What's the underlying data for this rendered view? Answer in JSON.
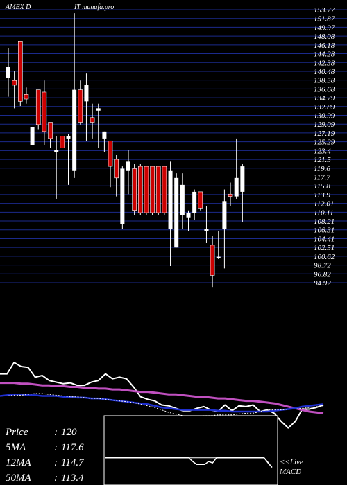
{
  "header": {
    "symbol": "AMEX  D",
    "site": "IT munafa.pro"
  },
  "colors": {
    "background": "#000000",
    "grid": "#1b2a8c",
    "up": "#ffffff",
    "down": "#cc0000",
    "rsi": "#ffffff",
    "ma_magenta": "#c050c0",
    "ma_blue": "#1f2fd0",
    "macd": "#ffffff"
  },
  "chart_data": [
    {
      "type": "candlestick",
      "y_ticks": [
        "153.77",
        "151.87",
        "149.97",
        "148.08",
        "146.18",
        "144.28",
        "142.38",
        "140.48",
        "138.58",
        "136.68",
        "134.79",
        "132.89",
        "130.99",
        "129.09",
        "127.19",
        "125.29",
        "123.4",
        "121.5",
        "119.6",
        "117.7",
        "115.8",
        "113.9",
        "112.01",
        "110.11",
        "108.21",
        "106.31",
        "104.41",
        "102.51",
        "100.62",
        "98.72",
        "96.82",
        "94.92"
      ],
      "ylim": [
        94.92,
        153.77
      ],
      "candles": [
        {
          "o": 139.0,
          "h": 145.5,
          "l": 135.0,
          "c": 141.5
        },
        {
          "o": 138.5,
          "h": 140.5,
          "l": 132.5,
          "c": 137.5
        },
        {
          "o": 147.0,
          "h": 147.0,
          "l": 133.0,
          "c": 134.0
        },
        {
          "o": 135.5,
          "h": 137.0,
          "l": 133.5,
          "c": 134.5
        },
        {
          "o": 124.5,
          "h": 128.5,
          "l": 124.5,
          "c": 128.5
        },
        {
          "o": 136.5,
          "h": 136.5,
          "l": 128.0,
          "c": 129.0
        },
        {
          "o": 136.0,
          "h": 138.5,
          "l": 124.5,
          "c": 127.5
        },
        {
          "o": 129.5,
          "h": 129.5,
          "l": 124.0,
          "c": 126.0
        },
        {
          "o": 123.0,
          "h": 126.5,
          "l": 113.0,
          "c": 123.5
        },
        {
          "o": 126.5,
          "h": 126.5,
          "l": 124.0,
          "c": 124.0
        },
        {
          "o": 126.0,
          "h": 127.0,
          "l": 116.0,
          "c": 126.5
        },
        {
          "o": 119.0,
          "h": 153.0,
          "l": 117.5,
          "c": 136.5
        },
        {
          "o": 136.5,
          "h": 138.5,
          "l": 129.0,
          "c": 129.5
        },
        {
          "o": 134.0,
          "h": 140.0,
          "l": 125.5,
          "c": 137.5
        },
        {
          "o": 130.5,
          "h": 133.5,
          "l": 126.0,
          "c": 129.5
        },
        {
          "o": 132.0,
          "h": 133.5,
          "l": 124.0,
          "c": 132.5
        },
        {
          "o": 126.0,
          "h": 127.5,
          "l": 123.0,
          "c": 127.5
        },
        {
          "o": 125.5,
          "h": 125.5,
          "l": 115.5,
          "c": 120.0
        },
        {
          "o": 121.5,
          "h": 122.5,
          "l": 113.5,
          "c": 117.5
        },
        {
          "o": 107.5,
          "h": 120.0,
          "l": 106.5,
          "c": 119.5
        },
        {
          "o": 119.0,
          "h": 123.5,
          "l": 114.0,
          "c": 121.0
        },
        {
          "o": 119.5,
          "h": 120.5,
          "l": 109.5,
          "c": 110.5
        },
        {
          "o": 120.0,
          "h": 120.5,
          "l": 109.5,
          "c": 110.0
        },
        {
          "o": 120.0,
          "h": 120.0,
          "l": 109.5,
          "c": 110.0
        },
        {
          "o": 120.0,
          "h": 120.0,
          "l": 109.5,
          "c": 110.0
        },
        {
          "o": 120.0,
          "h": 120.0,
          "l": 109.5,
          "c": 110.0
        },
        {
          "o": 120.0,
          "h": 120.0,
          "l": 109.5,
          "c": 110.0
        },
        {
          "o": 106.5,
          "h": 121.0,
          "l": 98.5,
          "c": 119.0
        },
        {
          "o": 102.5,
          "h": 118.5,
          "l": 102.5,
          "c": 117.5
        },
        {
          "o": 109.5,
          "h": 118.5,
          "l": 106.5,
          "c": 116.0
        },
        {
          "o": 109.0,
          "h": 110.5,
          "l": 106.0,
          "c": 110.0
        },
        {
          "o": 110.0,
          "h": 115.0,
          "l": 108.5,
          "c": 114.5
        },
        {
          "o": 114.5,
          "h": 114.5,
          "l": 110.5,
          "c": 111.0
        },
        {
          "o": 106.0,
          "h": 111.5,
          "l": 103.5,
          "c": 106.5
        },
        {
          "o": 103.0,
          "h": 105.0,
          "l": 94.0,
          "c": 96.5
        },
        {
          "o": 100.5,
          "h": 106.0,
          "l": 100.0,
          "c": 100.5
        },
        {
          "o": 106.5,
          "h": 115.0,
          "l": 98.0,
          "c": 112.5
        },
        {
          "o": 114.0,
          "h": 116.5,
          "l": 111.5,
          "c": 113.5
        },
        {
          "o": 113.5,
          "h": 126.0,
          "l": 113.0,
          "c": 117.5
        },
        {
          "o": 114.5,
          "h": 120.5,
          "l": 108.0,
          "c": 120.0
        }
      ]
    },
    {
      "type": "line",
      "series": [
        {
          "values": [
            58,
            58,
            72,
            67,
            66,
            54,
            56,
            50,
            48,
            46,
            47,
            44,
            44,
            48,
            50,
            58,
            52,
            54,
            52,
            42,
            30,
            27,
            25,
            20,
            19,
            16,
            13,
            13,
            16,
            18,
            14,
            12,
            20,
            13,
            19,
            18,
            20,
            12,
            14,
            10,
            0,
            -8,
            0,
            15,
            15,
            17,
            20
          ]
        },
        {
          "values": [
            47,
            47,
            47,
            46,
            46,
            45,
            44,
            44,
            43,
            43,
            42,
            42,
            41,
            41,
            40,
            40,
            39,
            39,
            38,
            37,
            36,
            36,
            35,
            34,
            33,
            33,
            32,
            31,
            30,
            30,
            29,
            28,
            28,
            27,
            26,
            25,
            25,
            24,
            23,
            22,
            20,
            18,
            16,
            14,
            12,
            11,
            10
          ]
        },
        {
          "values": [
            31,
            32,
            33,
            33,
            32,
            32,
            31,
            31,
            31,
            30,
            30,
            29,
            29,
            28,
            28,
            27,
            26,
            25,
            24,
            23,
            22,
            21,
            19,
            17,
            16,
            15,
            14,
            14,
            14,
            14,
            14,
            13,
            13,
            12,
            12,
            12,
            12,
            12,
            12,
            13,
            14,
            15,
            16,
            18,
            19,
            20,
            21
          ]
        },
        {
          "values": [
            31,
            31,
            32,
            32,
            33,
            34,
            34,
            33,
            32,
            31,
            30,
            30,
            29,
            28,
            28,
            27,
            26,
            25,
            24,
            23,
            21,
            19,
            17,
            14,
            11,
            9,
            7,
            6,
            6,
            7,
            7,
            8,
            8,
            8,
            9,
            10,
            10,
            12,
            14,
            14,
            14,
            15,
            15,
            16,
            17,
            18,
            19
          ]
        }
      ],
      "ylim": [
        -10,
        100
      ]
    },
    {
      "type": "line",
      "series": [
        {
          "values": [
            5,
            5,
            5,
            5,
            5,
            5,
            5,
            5,
            5,
            5,
            5,
            5,
            5,
            5,
            5,
            5,
            5,
            5,
            5,
            5,
            5,
            5,
            5,
            5,
            5,
            5,
            5,
            5,
            5,
            5,
            5,
            5,
            5,
            5,
            5,
            5,
            5,
            5,
            5,
            5,
            5,
            -1,
            -8
          ]
        },
        {
          "values": [
            5,
            5,
            5,
            5,
            5,
            5,
            5,
            5,
            5,
            5,
            5,
            5,
            5,
            5,
            5,
            5,
            5,
            5,
            5,
            5,
            5,
            5,
            0,
            -4,
            -4,
            -4,
            0,
            -2,
            5,
            5,
            5,
            5,
            5,
            5,
            5,
            5,
            5,
            5,
            5,
            5,
            5,
            -2,
            -8
          ]
        }
      ],
      "ylim": [
        -30,
        60
      ]
    }
  ],
  "info": {
    "price_label": "Price",
    "price_value": "120",
    "ma5_label": "5MA",
    "ma5_value": "117.6",
    "ma12_label": "12MA",
    "ma12_value": "114.7",
    "ma50_label": "50MA",
    "ma50_value": "113.4"
  },
  "macd_box": {
    "live_label": "<<Live",
    "macd_label": "MACD"
  }
}
